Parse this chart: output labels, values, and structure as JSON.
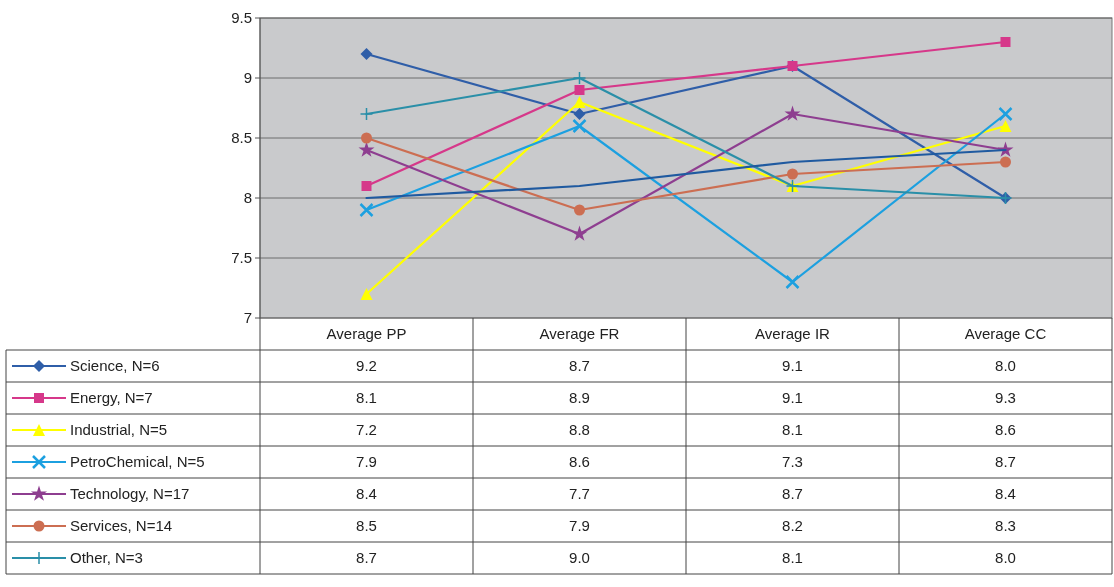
{
  "chart_data": {
    "type": "line",
    "categories": [
      "Average PP",
      "Average FR",
      "Average IR",
      "Average CC"
    ],
    "ylim": [
      7,
      9.5
    ],
    "yticks": [
      7,
      7.5,
      8,
      8.5,
      9,
      9.5
    ],
    "grid": "y",
    "legend": "bottom",
    "series": [
      {
        "name": "Science, N=6",
        "color": "#2f5ea8",
        "marker": "diamond",
        "values": [
          9.2,
          8.7,
          9.1,
          8.0
        ],
        "value_labels": [
          "9.2",
          "8.7",
          "9.1",
          "8.0"
        ]
      },
      {
        "name": "Energy, N=7",
        "color": "#d6388a",
        "marker": "square",
        "values": [
          8.1,
          8.9,
          9.1,
          9.3
        ],
        "value_labels": [
          "8.1",
          "8.9",
          "9.1",
          "9.3"
        ]
      },
      {
        "name": "Industrial, N=5",
        "color": "#ffff00",
        "marker": "triangle",
        "values": [
          7.2,
          8.8,
          8.1,
          8.6
        ],
        "value_labels": [
          "7.2",
          "8.8",
          "8.1",
          "8.6"
        ]
      },
      {
        "name": "PetroChemical, N=5",
        "color": "#1ca0e0",
        "marker": "cross",
        "values": [
          7.9,
          8.6,
          7.3,
          8.7
        ],
        "value_labels": [
          "7.9",
          "8.6",
          "7.3",
          "8.7"
        ]
      },
      {
        "name": "Technology, N=17",
        "color": "#8e3e90",
        "marker": "star",
        "values": [
          8.4,
          7.7,
          8.7,
          8.4
        ],
        "value_labels": [
          "8.4",
          "7.7",
          "8.7",
          "8.4"
        ]
      },
      {
        "name": "Services, N=14",
        "color": "#cc6e52",
        "marker": "circle",
        "values": [
          8.5,
          7.9,
          8.2,
          8.3
        ],
        "value_labels": [
          "8.5",
          "7.9",
          "8.2",
          "8.3"
        ]
      },
      {
        "name": "Other, N=3",
        "color": "#2a8fa8",
        "marker": "plus",
        "values": [
          8.7,
          9.0,
          8.1,
          8.0
        ],
        "value_labels": [
          "8.7",
          "9.0",
          "8.1",
          "8.0"
        ]
      },
      {
        "color": "#1f5aa0",
        "marker": "none",
        "values": [
          8.0,
          8.1,
          8.3,
          8.4
        ]
      }
    ]
  }
}
